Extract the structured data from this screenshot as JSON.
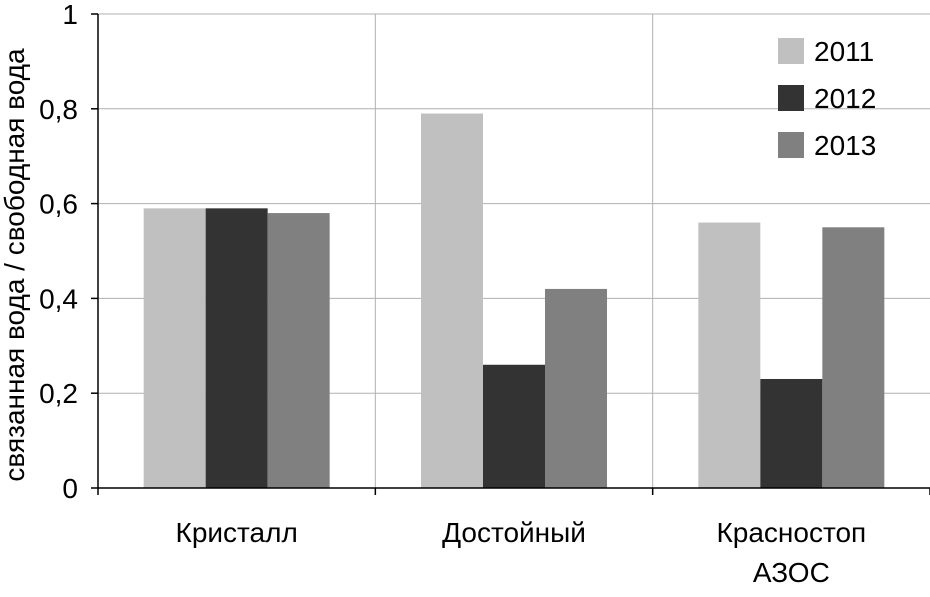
{
  "chart_data": {
    "type": "bar",
    "categories": [
      [
        "Кристалл"
      ],
      [
        "Достойный"
      ],
      [
        "Красностоп",
        "АЗОС"
      ]
    ],
    "series": [
      {
        "name": "2011",
        "values": [
          0.59,
          0.79,
          0.56
        ],
        "color": "#c0c0c0"
      },
      {
        "name": "2012",
        "values": [
          0.59,
          0.26,
          0.23
        ],
        "color": "#333333"
      },
      {
        "name": "2013",
        "values": [
          0.58,
          0.42,
          0.55
        ],
        "color": "#808080"
      }
    ],
    "ylabel": "связанная вода / свободная вода",
    "ylim": [
      0,
      1
    ],
    "yticks": [
      {
        "value": 0,
        "label": "0"
      },
      {
        "value": 0.2,
        "label": "0,2"
      },
      {
        "value": 0.4,
        "label": "0,4"
      },
      {
        "value": 0.6,
        "label": "0,6"
      },
      {
        "value": 0.8,
        "label": "0,8"
      },
      {
        "value": 1,
        "label": "1"
      }
    ],
    "grid": true,
    "legend_position": "top-right"
  }
}
